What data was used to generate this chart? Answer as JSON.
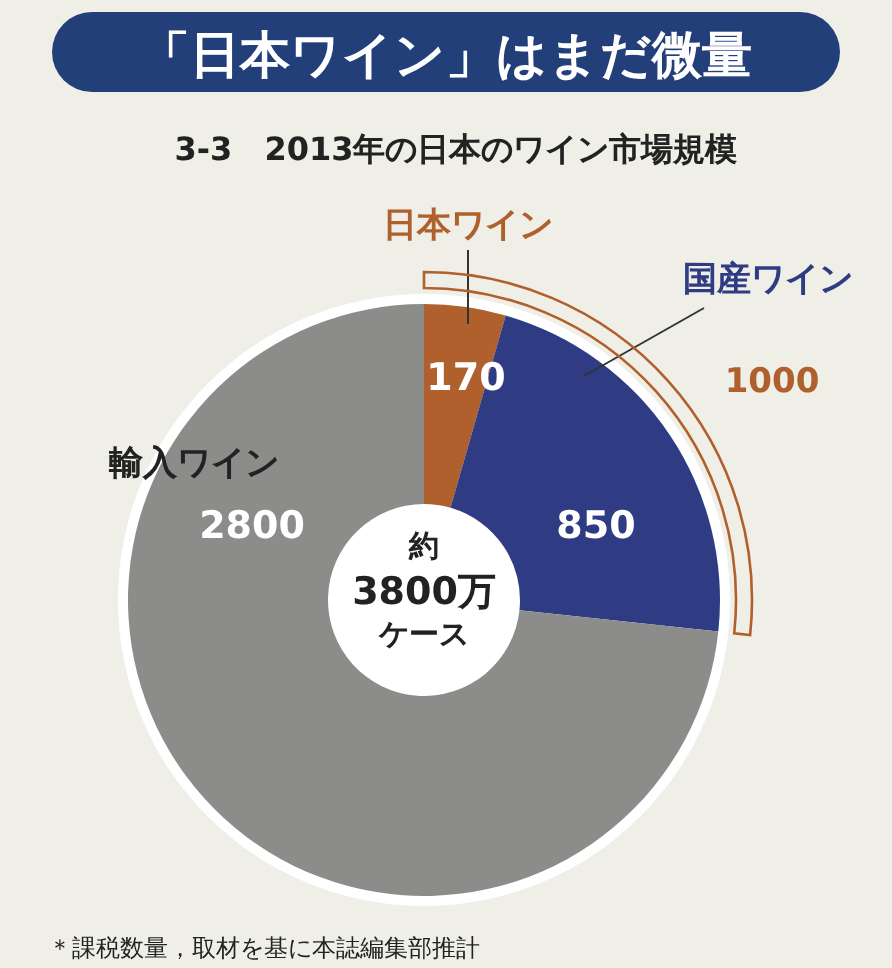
{
  "chart_data": {
    "type": "donut",
    "title": "「日本ワイン」はまだ微量",
    "subtitle": "3-3　2013年の日本のワイン市場規模",
    "categories": [
      "日本ワイン",
      "国産ワイン",
      "輸入ワイン"
    ],
    "values": [
      170,
      850,
      2800
    ],
    "colors": [
      "#b0602c",
      "#2f3b82",
      "#8c8c8a"
    ],
    "data_labels": true,
    "annotations": [
      "1000",
      "約",
      "3800万",
      "ケース",
      "＊課税数量，取材を基に本誌編集部推計"
    ]
  }
}
